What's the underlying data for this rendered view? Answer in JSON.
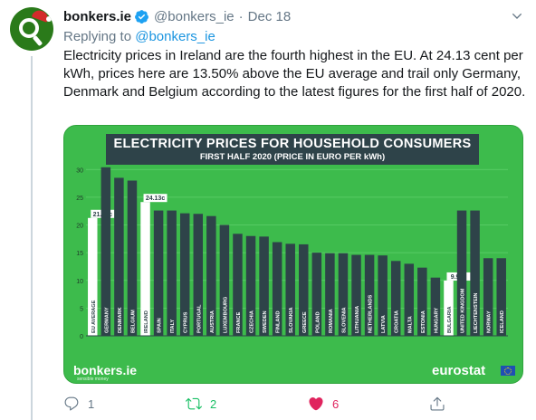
{
  "tweet": {
    "display_name": "bonkers.ie",
    "handle": "@bonkers_ie",
    "separator": "·",
    "date": "Dec 18",
    "replying_prefix": "Replying to",
    "replying_to": "@bonkers_ie",
    "text": "Electricity prices in Ireland are the fourth highest in the EU. At 24.13 cent per kWh, prices here are 13.50% above the EU average and trail only Germany, Denmark and Belgium according to the latest figures for the first half of 2020.",
    "verified_icon": "verified-badge-icon",
    "accent_color": "#1b95e0"
  },
  "actions": {
    "reply_count": "1",
    "retweet_count": "2",
    "like_count": "6",
    "retweet_color": "#17bf63",
    "like_color": "#e0245e"
  },
  "chart_data": {
    "type": "bar",
    "title": "ELECTRICITY PRICES FOR HOUSEHOLD CONSUMERS",
    "subtitle": "FIRST HALF 2020 (PRICE IN EURO PER kWh)",
    "ylim": [
      0,
      32
    ],
    "yticks": [
      0,
      5,
      10,
      15,
      20,
      25,
      30
    ],
    "grid": true,
    "categories": [
      "EU AVERAGE",
      "GERMANY",
      "DENMARK",
      "BELGIUM",
      "IRELAND",
      "SPAIN",
      "ITALY",
      "CYPRUS",
      "PORTUGAL",
      "AUSTRIA",
      "LUXEMBOURG",
      "FRANCE",
      "CZECHIA",
      "SWEDEN",
      "FINLAND",
      "SLOVAKIA",
      "GREECE",
      "POLAND",
      "ROMANIA",
      "SLOVENIA",
      "LITHUANIA",
      "NETHERLANDS",
      "LATVIA",
      "CROATIA",
      "MALTA",
      "ESTONIA",
      "HUNGARY",
      "BULGARIA",
      "UNITED KINGDOM",
      "LIECHTENSTEIN",
      "NORWAY",
      "ICELAND"
    ],
    "values": [
      21.26,
      30.4,
      28.5,
      28.0,
      24.13,
      22.6,
      22.6,
      22.1,
      22.0,
      21.6,
      20.0,
      18.4,
      18.0,
      17.9,
      16.9,
      16.6,
      16.5,
      15.0,
      14.9,
      14.9,
      14.6,
      14.6,
      14.5,
      13.5,
      13.0,
      12.3,
      10.5,
      9.97,
      22.6,
      22.6,
      14.0,
      14.0
    ],
    "highlight": {
      "EU AVERAGE": "21.26c",
      "IRELAND": "24.13c",
      "BULGARIA": "9.97c"
    },
    "bar_color": "#2e4349",
    "highlight_color": "#ffffff",
    "background_color": "#3dbb4c"
  },
  "chart_branding": {
    "left_logo": "bonkers.ie",
    "left_tagline": "sensible money",
    "right_logo": "eurostat"
  }
}
